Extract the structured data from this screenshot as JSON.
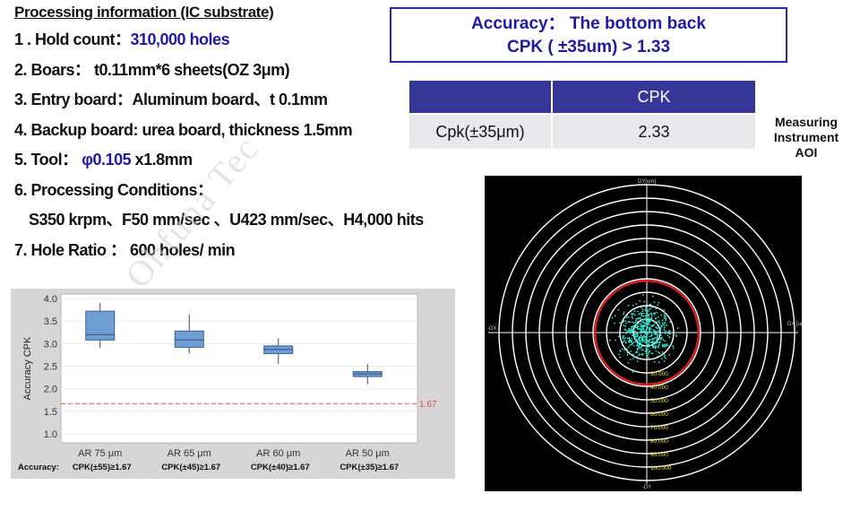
{
  "info": {
    "title": "Processing information (IC substrate)",
    "lines": {
      "l1_label": "1 . Hold count：",
      "l1_value": "310,000 holes",
      "l2": "2. Boars： t0.11mm*6 sheets(OZ 3μm)",
      "l3": "3. Entry board：Aluminum board、t 0.1mm",
      "l4": "4. Backup board: urea board, thickness 1.5mm",
      "l5_label": "5. Tool： ",
      "l5_value": "φ0.105",
      "l5_suffix": " x1.8mm",
      "l6": "6. Processing Conditions：",
      "l6_detail": "S350 krpm、F50 mm/sec 、U423 mm/sec、H4,000 hits",
      "l7": "7. Hole Ratio ：  600  holes/ min"
    }
  },
  "accuracy": {
    "line1": "Accuracy：  The bottom back",
    "line2": "CPK ( ±35um) > 1.33"
  },
  "cpk_table": {
    "header": "CPK",
    "row_label": "Cpk(±35μm)",
    "row_value": "2.33"
  },
  "measuring": {
    "line1": "Measuring",
    "line2": "Instrument",
    "line3": "AOI"
  },
  "watermark": "Ohfuna Tec",
  "chart_data": [
    {
      "type": "box",
      "ylabel": "Accuracy  CPK",
      "ylim": [
        0.8,
        4.1
      ],
      "yticks": [
        "4.0",
        "3.5",
        "3.0",
        "2.5",
        "2.0",
        "1.5",
        "1.0"
      ],
      "categories": [
        "AR 75 μm",
        "AR 65 μm",
        "AR 60 μm",
        "AR 50 μm"
      ],
      "boxes": [
        {
          "whisker_low": 2.9,
          "q1": 3.08,
          "median": 3.2,
          "q3": 3.72,
          "whisker_high": 3.9
        },
        {
          "whisker_low": 2.78,
          "q1": 2.92,
          "median": 3.08,
          "q3": 3.28,
          "whisker_high": 3.65
        },
        {
          "whisker_low": 2.55,
          "q1": 2.78,
          "median": 2.87,
          "q3": 2.95,
          "whisker_high": 3.12
        },
        {
          "whisker_low": 2.1,
          "q1": 2.27,
          "median": 2.33,
          "q3": 2.38,
          "whisker_high": 2.55
        }
      ],
      "reference_line": 1.67,
      "reference_label": "1.67",
      "accuracy_prefix": "Accuracy:",
      "accuracy_labels": [
        "CPK(±55)≥1.67",
        "CPK(±45)≥1.67",
        "CPK(±40)≥1.67",
        "CPK(±35)≥1.67"
      ],
      "colors": {
        "box": "#6f9ed4",
        "ref": "#d9534f",
        "bg": "#d6d6d6"
      }
    },
    {
      "type": "scatter",
      "title": "DY[um]",
      "xlabel_left": "-DX",
      "xlabel_right": "DX [um]",
      "ylabel_bottom": "-DY",
      "ring_labels": [
        "30.000",
        "40.000",
        "50.000",
        "60.000",
        "70.000",
        "80.000",
        "90.000",
        "100.000"
      ],
      "limit_ring": 35,
      "colors": {
        "points": "#2ee6d0",
        "limit": "#e02020",
        "rings": "#ffffff",
        "labels": "#f0e030"
      }
    }
  ]
}
